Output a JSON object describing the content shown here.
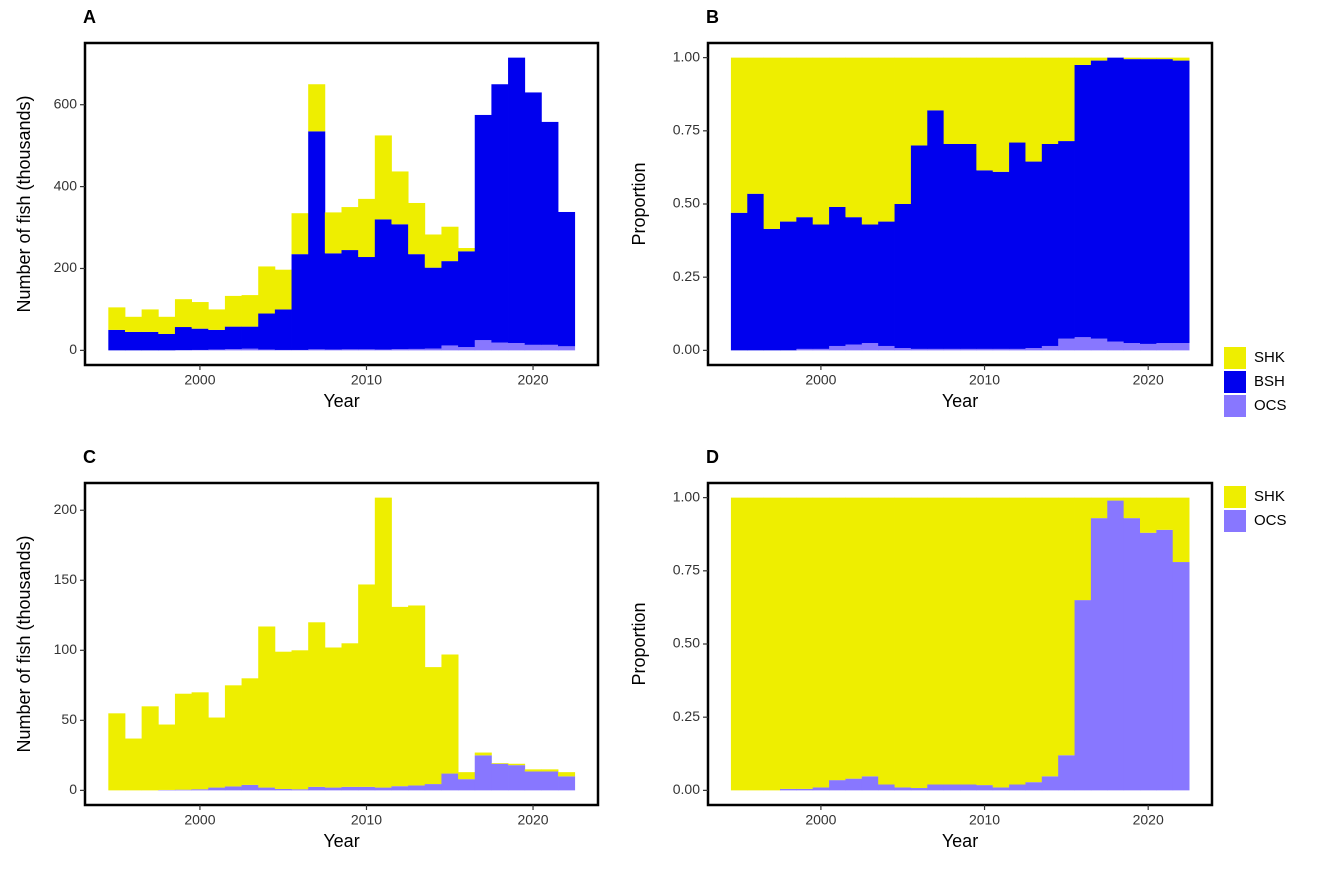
{
  "chart_data": [
    {
      "type": "bar",
      "stacked": true,
      "title": "A",
      "x_label": "Year",
      "y_label": "Number of fish (thousands)",
      "x": [
        1995,
        1996,
        1997,
        1998,
        1999,
        2000,
        2001,
        2002,
        2003,
        2004,
        2005,
        2006,
        2007,
        2008,
        2009,
        2010,
        2011,
        2012,
        2013,
        2014,
        2015,
        2016,
        2017,
        2018,
        2019,
        2020,
        2021,
        2022
      ],
      "series": [
        {
          "name": "OCS",
          "color": "#8877ff",
          "values": [
            0,
            0,
            0,
            0,
            0.5,
            1,
            2,
            3,
            4,
            2,
            1,
            1,
            2.5,
            2,
            2.5,
            2.5,
            2,
            3,
            3.5,
            4.5,
            12,
            8,
            25,
            19,
            18,
            13.5,
            13.5,
            10
          ]
        },
        {
          "name": "BSH",
          "color": "#0000ee",
          "values": [
            50,
            45,
            45,
            40,
            56.5,
            52,
            48,
            55,
            54,
            88,
            99,
            234,
            532.5,
            235,
            242.5,
            225.5,
            318,
            305,
            231.5,
            197.5,
            206,
            234,
            550,
            631,
            697,
            616.5,
            544.5,
            328
          ]
        },
        {
          "name": "SHK",
          "color": "#eeee00",
          "values": [
            55,
            37,
            55,
            42,
            68,
            65,
            50,
            75,
            77,
            115,
            97,
            100,
            115,
            100,
            105,
            142,
            205,
            129,
            125,
            81,
            84,
            8,
            0,
            0,
            0,
            0,
            0,
            0
          ]
        }
      ],
      "xlim": [
        1993.1,
        2023.9
      ],
      "xticks": [
        2000,
        2010,
        2020
      ],
      "ylim": [
        -35.75,
        750.75
      ],
      "yticks": [
        0,
        200,
        400,
        600
      ],
      "legend": false
    },
    {
      "type": "bar",
      "stacked": true,
      "title": "B",
      "x_label": "Year",
      "y_label": "Proportion",
      "x": [
        1995,
        1996,
        1997,
        1998,
        1999,
        2000,
        2001,
        2002,
        2003,
        2004,
        2005,
        2006,
        2007,
        2008,
        2009,
        2010,
        2011,
        2012,
        2013,
        2014,
        2015,
        2016,
        2017,
        2018,
        2019,
        2020,
        2021,
        2022
      ],
      "series": [
        {
          "name": "OCS",
          "color": "#8877ff",
          "values": [
            0,
            0,
            0,
            0,
            0.005,
            0.005,
            0.015,
            0.02,
            0.025,
            0.015,
            0.008,
            0.005,
            0.005,
            0.005,
            0.005,
            0.005,
            0.005,
            0.005,
            0.008,
            0.015,
            0.04,
            0.045,
            0.04,
            0.03,
            0.025,
            0.022,
            0.025,
            0.025
          ]
        },
        {
          "name": "BSH",
          "color": "#0000ee",
          "values": [
            0.47,
            0.535,
            0.415,
            0.44,
            0.45,
            0.425,
            0.475,
            0.435,
            0.405,
            0.425,
            0.492,
            0.695,
            0.815,
            0.7,
            0.7,
            0.61,
            0.605,
            0.705,
            0.637,
            0.69,
            0.675,
            0.93,
            0.95,
            0.97,
            0.97,
            0.973,
            0.97,
            0.965
          ]
        },
        {
          "name": "SHK",
          "color": "#eeee00",
          "values": [
            0.53,
            0.465,
            0.585,
            0.56,
            0.545,
            0.57,
            0.51,
            0.545,
            0.57,
            0.56,
            0.5,
            0.3,
            0.18,
            0.295,
            0.295,
            0.385,
            0.39,
            0.29,
            0.355,
            0.295,
            0.285,
            0.025,
            0.01,
            0,
            0.005,
            0.005,
            0.005,
            0.01
          ]
        }
      ],
      "xlim": [
        1993.1,
        2023.9
      ],
      "xticks": [
        2000,
        2010,
        2020
      ],
      "ylim": [
        -0.05,
        1.05
      ],
      "yticks": [
        {
          "value": 0,
          "label": "0.00"
        },
        {
          "value": 0.25,
          "label": "0.25"
        },
        {
          "value": 0.5,
          "label": "0.50"
        },
        {
          "value": 0.75,
          "label": "0.75"
        },
        {
          "value": 1,
          "label": "1.00"
        }
      ],
      "legend": true
    },
    {
      "type": "bar",
      "stacked": true,
      "title": "C",
      "x_label": "Year",
      "y_label": "Number of fish (thousands)",
      "x": [
        1995,
        1996,
        1997,
        1998,
        1999,
        2000,
        2001,
        2002,
        2003,
        2004,
        2005,
        2006,
        2007,
        2008,
        2009,
        2010,
        2011,
        2012,
        2013,
        2014,
        2015,
        2016,
        2017,
        2018,
        2019,
        2020,
        2021,
        2022
      ],
      "series": [
        {
          "name": "OCS",
          "color": "#8877ff",
          "values": [
            0,
            0,
            0,
            0.3,
            0.5,
            0.8,
            2,
            2.8,
            3.9,
            2,
            1,
            0.8,
            2.5,
            2,
            2.5,
            2.5,
            2,
            3,
            3.5,
            4.5,
            12,
            8,
            25,
            19,
            18,
            13.5,
            13.5,
            10
          ]
        },
        {
          "name": "SHK",
          "color": "#eeee00",
          "values": [
            55,
            37,
            60,
            46.7,
            68.5,
            69.2,
            50,
            72.2,
            76.1,
            115,
            98,
            99.2,
            117.5,
            100,
            102.5,
            144.5,
            207,
            128,
            128.5,
            83.5,
            85,
            5,
            2,
            0.5,
            1,
            1.5,
            1.5,
            3
          ]
        }
      ],
      "xlim": [
        1993.1,
        2023.9
      ],
      "xticks": [
        2000,
        2010,
        2020
      ],
      "ylim": [
        -10.45,
        219.45
      ],
      "yticks": [
        0,
        50,
        100,
        150,
        200
      ],
      "legend": false
    },
    {
      "type": "bar",
      "stacked": true,
      "title": "D",
      "x_label": "Year",
      "y_label": "Proportion",
      "x": [
        1995,
        1996,
        1997,
        1998,
        1999,
        2000,
        2001,
        2002,
        2003,
        2004,
        2005,
        2006,
        2007,
        2008,
        2009,
        2010,
        2011,
        2012,
        2013,
        2014,
        2015,
        2016,
        2017,
        2018,
        2019,
        2020,
        2021,
        2022
      ],
      "series": [
        {
          "name": "OCS",
          "color": "#8877ff",
          "values": [
            0,
            0,
            0,
            0.005,
            0.005,
            0.01,
            0.035,
            0.04,
            0.048,
            0.02,
            0.01,
            0.008,
            0.02,
            0.02,
            0.02,
            0.018,
            0.01,
            0.02,
            0.028,
            0.048,
            0.12,
            0.65,
            0.93,
            0.99,
            0.93,
            0.88,
            0.89,
            0.78
          ]
        },
        {
          "name": "SHK",
          "color": "#eeee00",
          "values": [
            1,
            1,
            1,
            0.995,
            0.995,
            0.99,
            0.965,
            0.96,
            0.952,
            0.98,
            0.99,
            0.992,
            0.98,
            0.98,
            0.98,
            0.982,
            0.99,
            0.98,
            0.972,
            0.952,
            0.88,
            0.35,
            0.07,
            0.01,
            0.07,
            0.12,
            0.11,
            0.22
          ]
        }
      ],
      "xlim": [
        1993.1,
        2023.9
      ],
      "xticks": [
        2000,
        2010,
        2020
      ],
      "ylim": [
        -0.05,
        1.05
      ],
      "yticks": [
        {
          "value": 0,
          "label": "0.00"
        },
        {
          "value": 0.25,
          "label": "0.25"
        },
        {
          "value": 0.5,
          "label": "0.50"
        },
        {
          "value": 0.75,
          "label": "0.75"
        },
        {
          "value": 1,
          "label": "1.00"
        }
      ],
      "legend": true
    }
  ]
}
